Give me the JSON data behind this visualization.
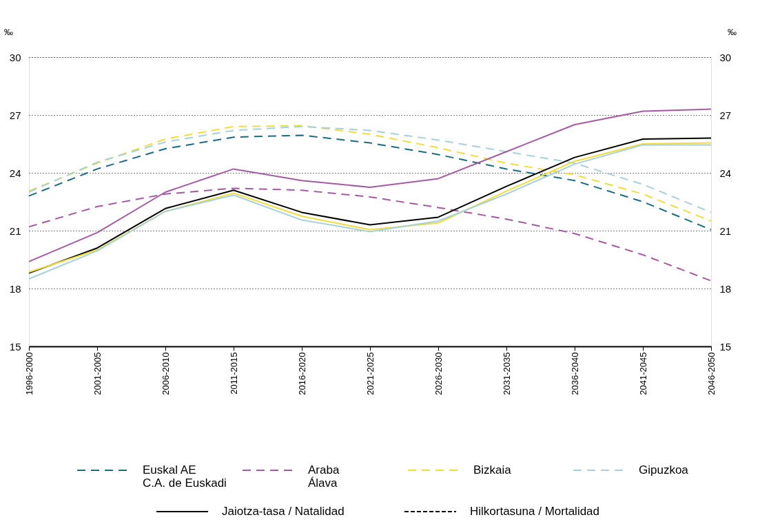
{
  "chart_data": {
    "type": "line",
    "ylabel": "‰",
    "y2label": "‰",
    "categories": [
      "1996-2000",
      "2001-2005",
      "2006-2010",
      "2011-2015",
      "2016-2020",
      "2021-2025",
      "2026-2030",
      "2031-2035",
      "2036-2040",
      "2041-2045",
      "2046-2050"
    ],
    "series": [
      {
        "name": "Euskal AE\nC.A. de Euskadi",
        "color": "#1b6a80",
        "line_style": "dashed",
        "values": [
          22.8,
          24.2,
          25.25,
          25.85,
          25.95,
          25.55,
          24.95,
          24.2,
          23.6,
          22.5,
          21.05
        ]
      },
      {
        "name": "Araba\nÁlava",
        "color": "#a45aa0",
        "line_style": "dashed",
        "values": [
          21.2,
          22.25,
          22.9,
          23.2,
          23.1,
          22.75,
          22.2,
          21.6,
          20.85,
          19.75,
          18.4
        ]
      },
      {
        "name": "Bizkaia",
        "color": "#f0dc3c",
        "line_style": "dashed",
        "values": [
          23.05,
          24.5,
          25.75,
          26.4,
          26.45,
          26.0,
          25.3,
          24.5,
          23.9,
          22.9,
          21.5
        ]
      },
      {
        "name": "Gipuzkoa",
        "color": "#a8d0d8",
        "line_style": "dashed",
        "values": [
          23.0,
          24.55,
          25.6,
          26.2,
          26.4,
          26.2,
          25.7,
          25.1,
          24.5,
          23.4,
          21.95
        ]
      },
      {
        "color": "#000000",
        "line_style": "solid",
        "values": [
          18.8,
          20.1,
          22.15,
          23.1,
          21.95,
          21.3,
          21.7,
          23.3,
          24.8,
          25.75,
          25.8
        ]
      },
      {
        "color": "#a45aa0",
        "line_style": "solid",
        "values": [
          19.4,
          20.9,
          23.0,
          24.2,
          23.6,
          23.25,
          23.7,
          25.1,
          26.5,
          27.2,
          27.3
        ]
      },
      {
        "color": "#f0dc3c",
        "line_style": "solid",
        "values": [
          18.85,
          20.0,
          22.0,
          22.95,
          21.75,
          21.05,
          21.4,
          23.05,
          24.6,
          25.5,
          25.55
        ]
      },
      {
        "color": "#a8d0d8",
        "line_style": "solid",
        "values": [
          18.5,
          19.95,
          22.0,
          22.85,
          21.55,
          20.95,
          21.5,
          22.9,
          24.45,
          25.45,
          25.45
        ]
      }
    ],
    "ylim": [
      15,
      30
    ],
    "yticks": [
      15,
      18,
      21,
      24,
      27,
      30
    ],
    "y2lim": [
      15,
      30
    ],
    "y2ticks": [
      15,
      18,
      21,
      24,
      27,
      30
    ],
    "grid": "y",
    "legend": "bottom",
    "marker": "none",
    "annotations": [
      "Jaiotza-tasa / Natalidad",
      "Hilkortasuna / Mortalidad"
    ]
  }
}
